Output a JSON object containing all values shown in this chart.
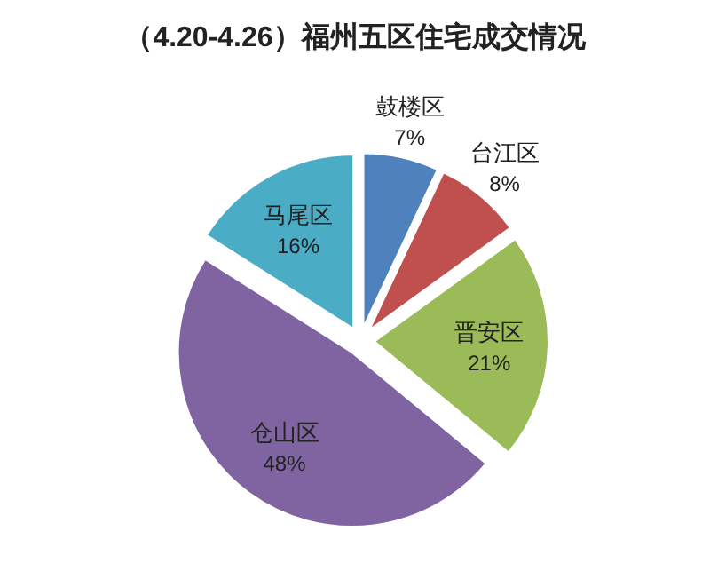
{
  "chart_data": {
    "type": "pie",
    "title": "（4.20-4.26）福州五区住宅成交情况",
    "categories": [
      "鼓楼区",
      "台江区",
      "晋安区",
      "仓山区",
      "马尾区"
    ],
    "values": [
      7,
      8,
      21,
      48,
      16
    ],
    "colors": [
      "#4f81bd",
      "#c0504d",
      "#9bbb59",
      "#8064a2",
      "#4bacc6"
    ],
    "value_labels": [
      "7%",
      "8%",
      "21%",
      "48%",
      "16%"
    ]
  }
}
